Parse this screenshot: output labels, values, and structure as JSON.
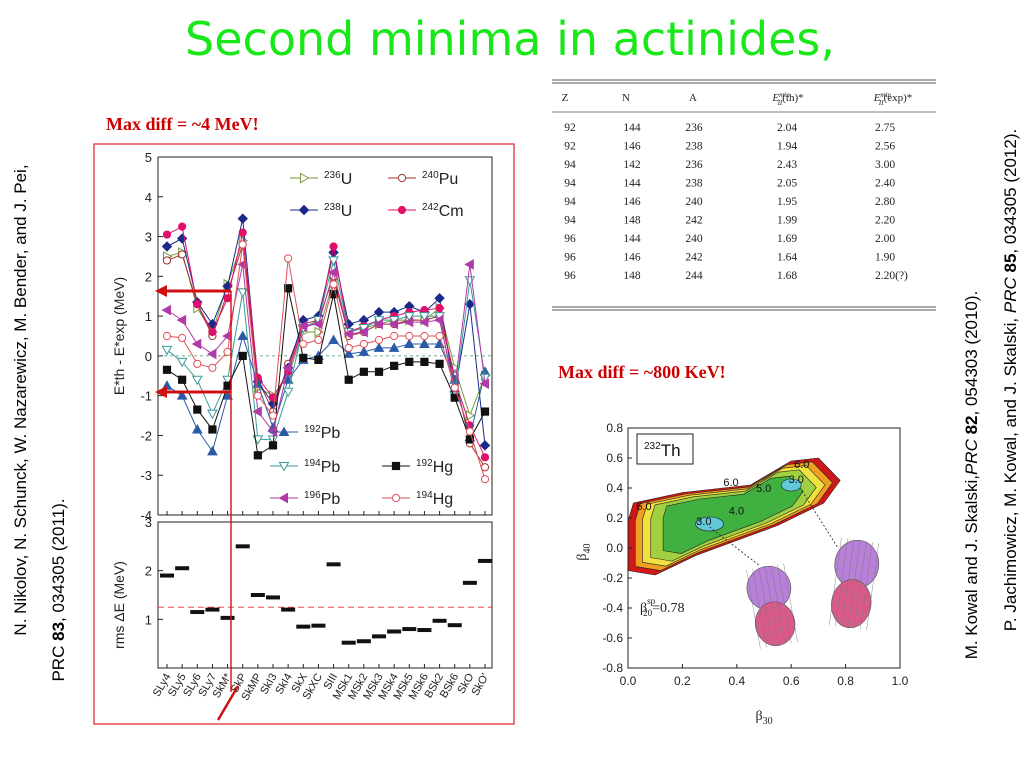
{
  "slide": {
    "title": "Second minima in actinides,",
    "left_note": "Max diff  = ~4 MeV!",
    "right_note": "Max diff  = ~800 KeV!"
  },
  "refs": {
    "left1": "N. Nikolov, N. Schunck, W. Nazarewicz, M. Bender, and J. Pei,",
    "left2_prc": "PRC",
    "left2_vol": "83",
    "left2_rest": ", 034305 (2011).",
    "right1_a": "M. Kowal and J. Skalski,",
    "right1_prc": "PRC",
    "right1_vol": "82",
    "right1_rest": ", 054303 (2010).",
    "right2_a": "P. Jachimowicz, M. Kowal,  and J. Skalski,",
    "right2_prc": "PRC",
    "right2_vol": "85",
    "right2_rest": ", 034305 (2012)."
  },
  "table": {
    "headers": [
      "Z",
      "N",
      "A",
      "E_II^min(th)*",
      "E_II^min(exp)*"
    ],
    "rows": [
      [
        "92",
        "144",
        "236",
        "2.04",
        "2.75"
      ],
      [
        "92",
        "146",
        "238",
        "1.94",
        "2.56"
      ],
      [
        "94",
        "142",
        "236",
        "2.43",
        "3.00"
      ],
      [
        "94",
        "144",
        "238",
        "2.05",
        "2.40"
      ],
      [
        "94",
        "146",
        "240",
        "1.95",
        "2.80"
      ],
      [
        "94",
        "148",
        "242",
        "1.99",
        "2.20"
      ],
      [
        "96",
        "144",
        "240",
        "1.69",
        "2.00"
      ],
      [
        "96",
        "146",
        "242",
        "1.64",
        "1.90"
      ],
      [
        "96",
        "148",
        "244",
        "1.68",
        "2.20(?)"
      ]
    ]
  },
  "chart_data": [
    {
      "type": "line",
      "ylabel": "E*th - E*exp (MeV)",
      "ylim": [
        -4,
        5
      ],
      "categories": [
        "SLy4",
        "SLy5",
        "SLy6",
        "SLy7",
        "SkM*",
        "SkP",
        "SkMP",
        "SkI3",
        "SkI4",
        "SkX",
        "SkXC",
        "SIII",
        "MSk1",
        "MSk2",
        "MSk3",
        "MSk4",
        "MSk5",
        "MSk6",
        "BSk2",
        "BSk6",
        "SkO",
        "SkO'"
      ],
      "legend": [
        "236U",
        "240Pu",
        "238U",
        "242Cm",
        "192Pb",
        "194Pb",
        "192Hg",
        "196Pb",
        "194Hg"
      ],
      "series": [
        {
          "name": "236U",
          "color": "#7a9a3a",
          "marker": "tri-right-open",
          "values": [
            2.5,
            2.6,
            1.2,
            0.6,
            1.8,
            2.9,
            -0.8,
            -1.0,
            -0.5,
            0.6,
            0.6,
            1.9,
            0.6,
            0.7,
            0.8,
            0.9,
            0.9,
            0.9,
            1.2,
            -0.3,
            -1.5,
            -0.5
          ]
        },
        {
          "name": "240Pu",
          "color": "#a0302a",
          "marker": "circle-open",
          "values": [
            2.4,
            2.55,
            1.3,
            0.5,
            1.6,
            2.8,
            -0.6,
            -1.4,
            -0.2,
            0.8,
            0.9,
            2.0,
            0.5,
            0.6,
            0.8,
            0.8,
            0.9,
            0.9,
            1.0,
            -0.5,
            -2.2,
            -2.8
          ]
        },
        {
          "name": "238U",
          "color": "#1a2a8a",
          "marker": "diamond",
          "values": [
            2.75,
            2.95,
            1.35,
            0.8,
            1.75,
            3.45,
            -0.65,
            -1.2,
            -0.3,
            0.9,
            1.0,
            2.6,
            0.8,
            0.9,
            1.1,
            1.1,
            1.25,
            1.1,
            1.45,
            -0.9,
            1.3,
            -2.25
          ]
        },
        {
          "name": "242Cm",
          "color": "#e0106a",
          "marker": "circle",
          "values": [
            3.05,
            3.25,
            1.3,
            0.6,
            1.45,
            3.1,
            -0.55,
            -1.05,
            -0.4,
            0.7,
            0.85,
            2.75,
            0.6,
            0.75,
            0.9,
            1.0,
            1.1,
            1.15,
            1.2,
            -0.6,
            -1.75,
            -2.55
          ]
        },
        {
          "name": "192Pb",
          "color": "#2a5aa8",
          "marker": "triangle",
          "values": [
            -0.75,
            -1.0,
            -1.85,
            -2.4,
            -1.0,
            0.5,
            -0.7,
            -1.8,
            -0.6,
            -0.1,
            0.0,
            0.4,
            0.05,
            0.1,
            0.2,
            0.2,
            0.3,
            0.3,
            0.3,
            -0.6,
            -2.05,
            -0.4
          ]
        },
        {
          "name": "194Pb",
          "color": "#3a9a9a",
          "marker": "tri-down-open",
          "values": [
            0.15,
            -0.15,
            -0.6,
            -1.45,
            -0.6,
            1.6,
            -2.1,
            -2.1,
            -0.9,
            0.7,
            0.9,
            2.4,
            0.6,
            0.7,
            0.9,
            0.9,
            1.0,
            1.0,
            1.0,
            -1.0,
            1.9,
            -0.55
          ]
        },
        {
          "name": "192Hg",
          "color": "#111111",
          "marker": "square",
          "values": [
            -0.35,
            -0.6,
            -1.35,
            -1.85,
            -0.75,
            0.0,
            -2.5,
            -2.25,
            1.7,
            -0.05,
            -0.1,
            1.55,
            -0.6,
            -0.4,
            -0.4,
            -0.25,
            -0.15,
            -0.15,
            -0.2,
            -1.05,
            -2.1,
            -1.4
          ]
        },
        {
          "name": "196Pb",
          "color": "#b03aa8",
          "marker": "tri-left",
          "values": [
            1.15,
            0.9,
            0.3,
            0.05,
            0.5,
            2.3,
            -1.4,
            -1.9,
            -0.3,
            0.75,
            0.8,
            2.1,
            0.55,
            0.6,
            0.8,
            0.8,
            0.85,
            0.85,
            0.9,
            -0.8,
            2.3,
            -0.7
          ]
        },
        {
          "name": "194Hg",
          "color": "#e0505a",
          "marker": "circle-open",
          "values": [
            0.5,
            0.45,
            -0.2,
            -0.3,
            0.1,
            2.8,
            -1.0,
            -1.5,
            2.45,
            0.3,
            0.4,
            1.8,
            0.2,
            0.3,
            0.4,
            0.5,
            0.5,
            0.5,
            0.5,
            -0.8,
            -1.9,
            -3.1
          ]
        }
      ]
    },
    {
      "type": "scatter",
      "ylabel": "rms  ΔE (MeV)",
      "ylim": [
        0,
        3
      ],
      "categories": [
        "SLy4",
        "SLy5",
        "SLy6",
        "SLy7",
        "SkM*",
        "SkP",
        "SkMP",
        "SkI3",
        "SkI4",
        "SkX",
        "SkXC",
        "SIII",
        "MSk1",
        "MSk2",
        "MSk3",
        "MSk4",
        "MSk5",
        "MSk6",
        "BSk2",
        "BSk6",
        "SkO",
        "SkO'"
      ],
      "values": [
        1.9,
        2.05,
        1.15,
        1.2,
        1.03,
        2.5,
        1.5,
        1.45,
        1.2,
        0.85,
        0.87,
        2.13,
        0.52,
        0.55,
        0.65,
        0.75,
        0.8,
        0.78,
        0.97,
        0.88,
        1.75,
        2.2
      ],
      "reference_line": 1.25
    },
    {
      "type": "heatmap",
      "title": "232Th",
      "xlabel": "β30",
      "ylabel": "β40",
      "xlim": [
        0.0,
        1.0
      ],
      "ylim": [
        -0.8,
        0.8
      ],
      "x_ticks": [
        "0.0",
        "0.2",
        "0.4",
        "0.6",
        "0.8",
        "1.0"
      ],
      "y_ticks": [
        "0.8",
        "0.6",
        "0.4",
        "0.2",
        "0.0",
        "-0.2",
        "-0.4",
        "-0.6",
        "-0.8"
      ],
      "contour_labels": [
        "6.0",
        "3.0",
        "4.0",
        "5.0",
        "6.0",
        "3.0",
        "6.0"
      ],
      "annotation": "β20sp=0.78"
    }
  ]
}
